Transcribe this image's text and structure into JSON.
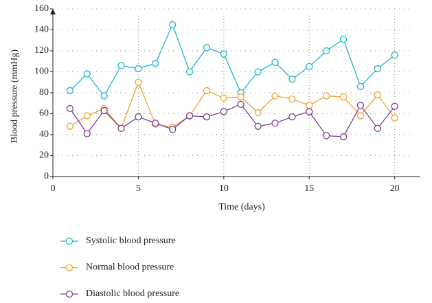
{
  "chart_data": {
    "type": "line",
    "x": [
      1,
      2,
      3,
      4,
      5,
      6,
      7,
      8,
      9,
      10,
      11,
      12,
      13,
      14,
      15,
      16,
      17,
      18,
      19,
      20
    ],
    "series": [
      {
        "name": "Systolic blood pressure",
        "color": "#1bb5c4",
        "values": [
          82,
          98,
          77,
          106,
          103,
          108,
          145,
          100,
          123,
          117,
          80,
          100,
          109,
          93,
          105,
          120,
          131,
          86,
          103,
          116
        ]
      },
      {
        "name": "Normal blood pressure",
        "color": "#f0a030",
        "values": [
          48,
          58,
          65,
          46,
          90,
          50,
          47,
          58,
          82,
          75,
          76,
          61,
          77,
          74,
          68,
          77,
          76,
          58,
          78,
          56
        ]
      },
      {
        "name": "Diastolic blood pressure",
        "color": "#7b3f8f",
        "values": [
          65,
          41,
          63,
          46,
          57,
          51,
          45,
          58,
          57,
          62,
          69,
          48,
          51,
          57,
          62,
          39,
          38,
          68,
          46,
          67
        ]
      }
    ],
    "xlabel": "Time (days)",
    "ylabel": "Blood pressure (mmHg)",
    "xlim": [
      0,
      21.5
    ],
    "xticks": [
      0,
      5,
      10,
      15,
      20
    ],
    "ylim": [
      0,
      160
    ],
    "yticks": [
      0,
      20,
      40,
      60,
      80,
      100,
      120,
      140,
      160
    ],
    "grid": true,
    "legend": "bottom"
  }
}
